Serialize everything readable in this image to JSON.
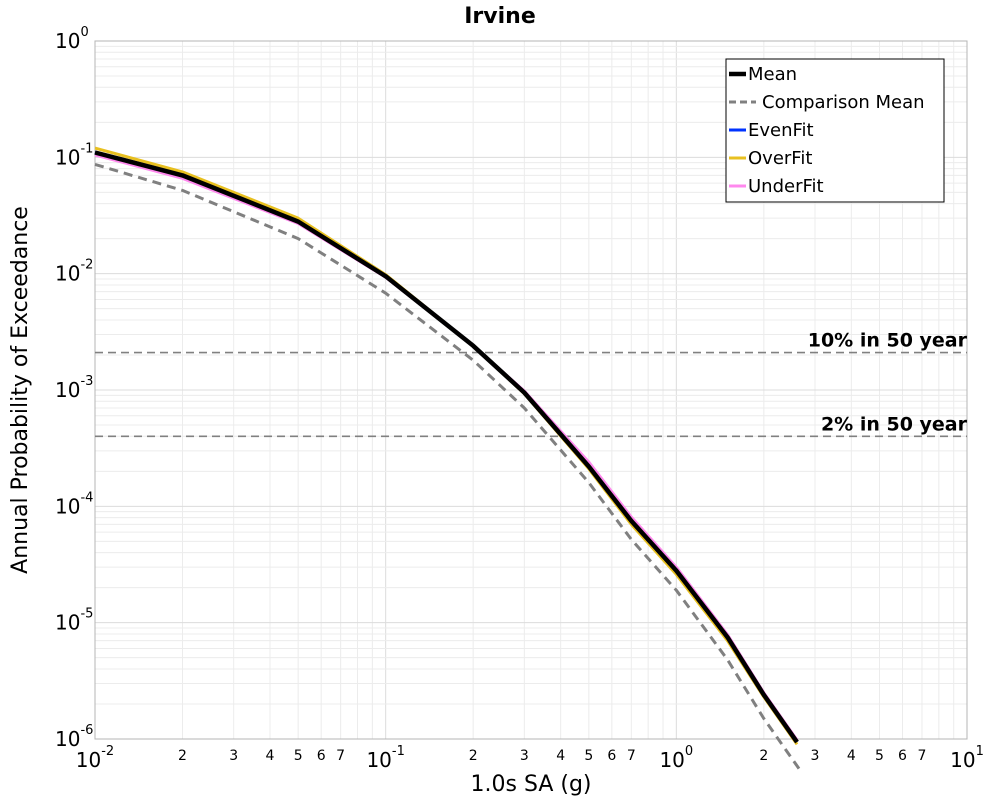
{
  "chart_data": {
    "type": "line",
    "title": "Irvine",
    "xlabel": "1.0s SA (g)",
    "ylabel": "Annual Probability of Exceedance",
    "xscale": "log",
    "yscale": "log",
    "xlim": [
      0.01,
      10
    ],
    "ylim": [
      1e-06,
      1
    ],
    "grid": true,
    "legend_position": "top-right",
    "x_major_ticks": [
      {
        "base": "10",
        "exp": "-2"
      },
      {
        "base": "10",
        "exp": "-1"
      },
      {
        "base": "10",
        "exp": "0"
      },
      {
        "base": "10",
        "exp": "1"
      }
    ],
    "y_major_ticks": [
      {
        "base": "10",
        "exp": "0"
      },
      {
        "base": "10",
        "exp": "-1"
      },
      {
        "base": "10",
        "exp": "-2"
      },
      {
        "base": "10",
        "exp": "-3"
      },
      {
        "base": "10",
        "exp": "-4"
      },
      {
        "base": "10",
        "exp": "-5"
      },
      {
        "base": "10",
        "exp": "-6"
      }
    ],
    "x_minor_tick_labels": [
      "2",
      "3",
      "4",
      "5",
      "6",
      "7"
    ],
    "reference_lines": [
      {
        "label": "10% in 50 year",
        "y": 0.0021,
        "color": "#808080"
      },
      {
        "label": "2% in 50 year",
        "y": 0.0004,
        "color": "#808080"
      }
    ],
    "series": [
      {
        "name": "EvenFit",
        "color": "#0033ff",
        "width": 3,
        "dash": "",
        "x": [
          0.01,
          0.02,
          0.05,
          0.1,
          0.2,
          0.3,
          0.5,
          0.7,
          1.0,
          1.5,
          2.0,
          2.6
        ],
        "y": [
          0.11,
          0.07,
          0.028,
          0.0095,
          0.0024,
          0.00095,
          0.00022,
          7.5e-05,
          2.8e-05,
          7.5e-06,
          2.4e-06,
          9.4e-07
        ]
      },
      {
        "name": "OverFit",
        "color": "#e8c020",
        "width": 3,
        "dash": "",
        "x": [
          0.01,
          0.02,
          0.05,
          0.1,
          0.2,
          0.3,
          0.5,
          0.7,
          1.0,
          1.5,
          2.0,
          2.6
        ],
        "y": [
          0.12,
          0.075,
          0.03,
          0.0098,
          0.0024,
          0.00093,
          0.00021,
          7e-05,
          2.6e-05,
          7e-06,
          2.3e-06,
          9e-07
        ]
      },
      {
        "name": "UnderFit",
        "color": "#ff88ee",
        "width": 3,
        "dash": "",
        "x": [
          0.01,
          0.02,
          0.05,
          0.1,
          0.2,
          0.3,
          0.5,
          0.7,
          1.0,
          1.5,
          2.0,
          2.6
        ],
        "y": [
          0.105,
          0.066,
          0.027,
          0.0093,
          0.0024,
          0.00098,
          0.00024,
          8.1e-05,
          3e-05,
          7.9e-06,
          2.5e-06,
          9.8e-07
        ]
      },
      {
        "name": "Comparison Mean",
        "color": "#808080",
        "width": 3,
        "dash": "9,6",
        "x": [
          0.01,
          0.02,
          0.05,
          0.1,
          0.2,
          0.3,
          0.5,
          0.7,
          1.0,
          1.5,
          2.0,
          2.65
        ],
        "y": [
          0.087,
          0.052,
          0.02,
          0.0068,
          0.0018,
          0.0007,
          0.00016,
          5.2e-05,
          1.9e-05,
          4.8e-06,
          1.5e-06,
          5.5e-07
        ]
      },
      {
        "name": "Mean",
        "color": "#000000",
        "width": 4.5,
        "dash": "",
        "x": [
          0.01,
          0.02,
          0.05,
          0.1,
          0.2,
          0.3,
          0.5,
          0.7,
          1.0,
          1.5,
          2.0,
          2.6
        ],
        "y": [
          0.11,
          0.07,
          0.028,
          0.0095,
          0.0024,
          0.00095,
          0.00022,
          7.5e-05,
          2.8e-05,
          7.5e-06,
          2.4e-06,
          9.4e-07
        ]
      }
    ],
    "legend": [
      {
        "label": "Mean",
        "color": "#000000",
        "width": 4.5,
        "dash": ""
      },
      {
        "label": "Comparison Mean",
        "color": "#808080",
        "width": 3,
        "dash": "9,6"
      },
      {
        "label": "EvenFit",
        "color": "#0033ff",
        "width": 3,
        "dash": ""
      },
      {
        "label": "OverFit",
        "color": "#e8c020",
        "width": 3,
        "dash": ""
      },
      {
        "label": "UnderFit",
        "color": "#ff88ee",
        "width": 3,
        "dash": ""
      }
    ]
  }
}
